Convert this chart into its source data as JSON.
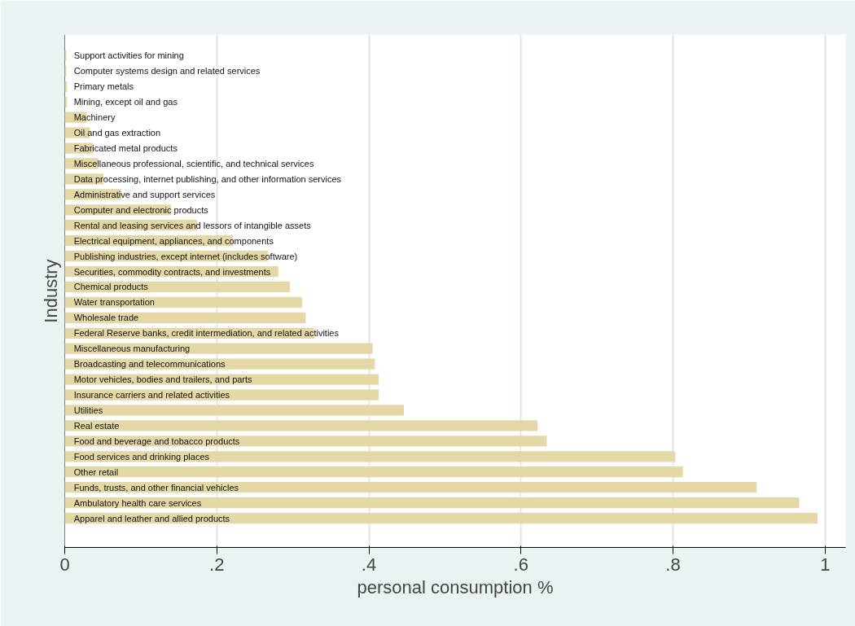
{
  "chart_data": {
    "type": "bar",
    "orientation": "horizontal",
    "xlabel": "personal consumption %",
    "ylabel": "Industry",
    "color": "#e3d8a6",
    "categories": [
      "Support activities for mining",
      "Computer systems design and related services",
      "Primary metals",
      "Mining, except oil and gas",
      "Machinery",
      "Oil and gas extraction",
      "Fabricated metal products",
      "Miscellaneous professional, scientific, and technical services",
      "Data processing, internet publishing, and other information services",
      "Administrative and support services",
      "Computer and electronic products",
      "Rental and leasing services and lessors of intangible assets",
      "Electrical equipment, appliances, and components",
      "Publishing industries, except internet (includes software)",
      "Securities, commodity contracts, and investments",
      "Chemical products",
      "Water transportation",
      "Wholesale trade",
      "Federal Reserve banks, credit intermediation, and related activities",
      "Miscellaneous manufacturing",
      "Broadcasting and telecommunications",
      "Motor vehicles, bodies and trailers, and parts",
      "Insurance carriers and related activities",
      "Utilities",
      "Real estate",
      "Food and beverage and tobacco products",
      "Food services and drinking places",
      "Other retail",
      "Funds, trusts, and other financial vehicles",
      "Ambulatory health care services",
      "Apparel and leather and allied products"
    ],
    "values": [
      0.002,
      0.002,
      0.003,
      0.003,
      0.029,
      0.033,
      0.037,
      0.044,
      0.051,
      0.074,
      0.14,
      0.174,
      0.221,
      0.267,
      0.281,
      0.296,
      0.312,
      0.317,
      0.328,
      0.405,
      0.408,
      0.413,
      0.413,
      0.446,
      0.622,
      0.634,
      0.803,
      0.813,
      0.91,
      0.966,
      0.99
    ],
    "xlim": [
      0,
      1.027
    ],
    "xticks": [
      0,
      {
        "value": 0.2,
        "label": ".2"
      },
      {
        "value": 0.4,
        "label": ".4"
      },
      {
        "value": 0.6,
        "label": ".6"
      },
      {
        "value": 0.8,
        "label": ".8"
      },
      1
    ],
    "grid": "x"
  }
}
